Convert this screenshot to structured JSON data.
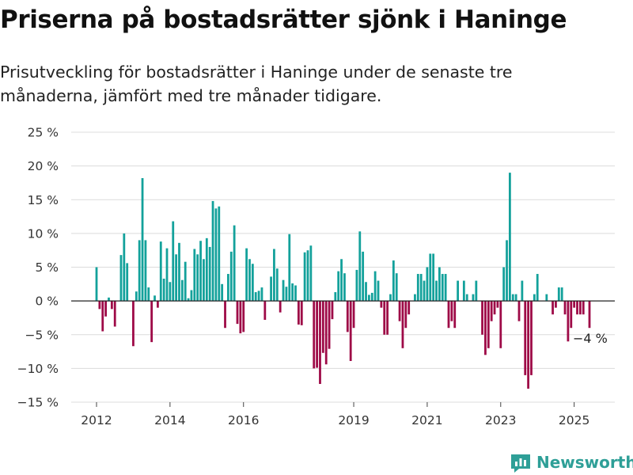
{
  "header": {
    "title": "Priserna på bostadsrätter sjönk i Haninge",
    "subtitle": "Prisutveckling för bostadsrätter i Haninge under de senaste tre månaderna, jämfört med tre månader tidigare."
  },
  "brand": {
    "name": "Newsworthy",
    "color": "#2e9f97"
  },
  "colors": {
    "positive": "#13a19b",
    "negative": "#9e0a47"
  },
  "chart_data": {
    "type": "bar",
    "title": "Priserna på bostadsrätter sjönk i Haninge",
    "subtitle": "Prisutveckling för bostadsrätter i Haninge under de senaste tre månaderna, jämfört med tre månader tidigare.",
    "xlabel": "",
    "ylabel": "",
    "ylim": [
      -15,
      25
    ],
    "y_ticks": [
      25,
      20,
      15,
      10,
      5,
      0,
      -5,
      -10,
      -15
    ],
    "y_tick_labels": [
      "25 %",
      "20 %",
      "15 %",
      "10 %",
      "5 %",
      "0 %",
      "−5 %",
      "−10 %",
      "−15 %"
    ],
    "x_ticks": [
      "2012",
      "2014",
      "2016",
      "2019",
      "2021",
      "2023",
      "2025"
    ],
    "x_range": [
      "2012-01",
      "2025-06"
    ],
    "grid": "horizontal",
    "annotations": [
      {
        "x": "2025-06",
        "text": "−4 %"
      }
    ],
    "series": [
      {
        "values": [
          {
            "x": "2012-01",
            "y": 5
          },
          {
            "x": "2012-02",
            "y": -1.2
          },
          {
            "x": "2012-03",
            "y": -4.5
          },
          {
            "x": "2012-04",
            "y": -2.3
          },
          {
            "x": "2012-05",
            "y": 0.5
          },
          {
            "x": "2012-06",
            "y": -1.2
          },
          {
            "x": "2012-07",
            "y": -3.8
          },
          {
            "x": "2012-09",
            "y": 6.8
          },
          {
            "x": "2012-10",
            "y": 10
          },
          {
            "x": "2012-11",
            "y": 5.6
          },
          {
            "x": "2013-01",
            "y": -6.7
          },
          {
            "x": "2013-02",
            "y": 1.4
          },
          {
            "x": "2013-03",
            "y": 9
          },
          {
            "x": "2013-04",
            "y": 18.2
          },
          {
            "x": "2013-05",
            "y": 9
          },
          {
            "x": "2013-06",
            "y": 2
          },
          {
            "x": "2013-07",
            "y": -6.1
          },
          {
            "x": "2013-08",
            "y": 0.8
          },
          {
            "x": "2013-09",
            "y": -1
          },
          {
            "x": "2013-10",
            "y": 8.8
          },
          {
            "x": "2013-11",
            "y": 3.3
          },
          {
            "x": "2013-12",
            "y": 7.8
          },
          {
            "x": "2014-01",
            "y": 2.8
          },
          {
            "x": "2014-02",
            "y": 11.8
          },
          {
            "x": "2014-03",
            "y": 6.9
          },
          {
            "x": "2014-04",
            "y": 8.6
          },
          {
            "x": "2014-05",
            "y": 3.1
          },
          {
            "x": "2014-06",
            "y": 5.8
          },
          {
            "x": "2014-07",
            "y": 0.4
          },
          {
            "x": "2014-08",
            "y": 1.6
          },
          {
            "x": "2014-09",
            "y": 7.7
          },
          {
            "x": "2014-10",
            "y": 6.9
          },
          {
            "x": "2014-11",
            "y": 8.9
          },
          {
            "x": "2014-12",
            "y": 6.2
          },
          {
            "x": "2015-01",
            "y": 9.3
          },
          {
            "x": "2015-02",
            "y": 8
          },
          {
            "x": "2015-03",
            "y": 14.8
          },
          {
            "x": "2015-04",
            "y": 13.7
          },
          {
            "x": "2015-05",
            "y": 14
          },
          {
            "x": "2015-06",
            "y": 2.5
          },
          {
            "x": "2015-07",
            "y": -4
          },
          {
            "x": "2015-08",
            "y": 4
          },
          {
            "x": "2015-09",
            "y": 7.3
          },
          {
            "x": "2015-10",
            "y": 11.2
          },
          {
            "x": "2015-11",
            "y": -3.4
          },
          {
            "x": "2015-12",
            "y": -4.8
          },
          {
            "x": "2016-01",
            "y": -4.6
          },
          {
            "x": "2016-02",
            "y": 7.8
          },
          {
            "x": "2016-03",
            "y": 6.2
          },
          {
            "x": "2016-04",
            "y": 5.5
          },
          {
            "x": "2016-05",
            "y": 1.3
          },
          {
            "x": "2016-06",
            "y": 1.5
          },
          {
            "x": "2016-07",
            "y": 2
          },
          {
            "x": "2016-08",
            "y": -2.8
          },
          {
            "x": "2016-10",
            "y": 3.6
          },
          {
            "x": "2016-11",
            "y": 7.7
          },
          {
            "x": "2016-12",
            "y": 4.8
          },
          {
            "x": "2017-01",
            "y": -1.7
          },
          {
            "x": "2017-02",
            "y": 3.1
          },
          {
            "x": "2017-03",
            "y": 2.1
          },
          {
            "x": "2017-04",
            "y": 9.9
          },
          {
            "x": "2017-05",
            "y": 2.6
          },
          {
            "x": "2017-06",
            "y": 2.3
          },
          {
            "x": "2017-07",
            "y": -3.5
          },
          {
            "x": "2017-08",
            "y": -3.6
          },
          {
            "x": "2017-09",
            "y": 7.2
          },
          {
            "x": "2017-10",
            "y": 7.5
          },
          {
            "x": "2017-11",
            "y": 8.2
          },
          {
            "x": "2017-12",
            "y": -10
          },
          {
            "x": "2018-01",
            "y": -9.9
          },
          {
            "x": "2018-02",
            "y": -12.3
          },
          {
            "x": "2018-03",
            "y": -7.7
          },
          {
            "x": "2018-04",
            "y": -9.4
          },
          {
            "x": "2018-05",
            "y": -7.1
          },
          {
            "x": "2018-06",
            "y": -2.7
          },
          {
            "x": "2018-07",
            "y": 1.3
          },
          {
            "x": "2018-08",
            "y": 4.4
          },
          {
            "x": "2018-09",
            "y": 6.2
          },
          {
            "x": "2018-10",
            "y": 4.1
          },
          {
            "x": "2018-11",
            "y": -4.6
          },
          {
            "x": "2018-12",
            "y": -8.9
          },
          {
            "x": "2019-01",
            "y": -4
          },
          {
            "x": "2019-02",
            "y": 4.6
          },
          {
            "x": "2019-03",
            "y": 10.3
          },
          {
            "x": "2019-04",
            "y": 7.3
          },
          {
            "x": "2019-05",
            "y": 2.8
          },
          {
            "x": "2019-06",
            "y": 0.9
          },
          {
            "x": "2019-07",
            "y": 1.2
          },
          {
            "x": "2019-08",
            "y": 4.4
          },
          {
            "x": "2019-09",
            "y": 3
          },
          {
            "x": "2019-10",
            "y": -1
          },
          {
            "x": "2019-11",
            "y": -5
          },
          {
            "x": "2019-12",
            "y": -5
          },
          {
            "x": "2020-01",
            "y": 1
          },
          {
            "x": "2020-02",
            "y": 6
          },
          {
            "x": "2020-03",
            "y": 4.1
          },
          {
            "x": "2020-04",
            "y": -3
          },
          {
            "x": "2020-05",
            "y": -7
          },
          {
            "x": "2020-06",
            "y": -4
          },
          {
            "x": "2020-07",
            "y": -2
          },
          {
            "x": "2020-09",
            "y": 1
          },
          {
            "x": "2020-10",
            "y": 4
          },
          {
            "x": "2020-11",
            "y": 4
          },
          {
            "x": "2020-12",
            "y": 3
          },
          {
            "x": "2021-01",
            "y": 5
          },
          {
            "x": "2021-02",
            "y": 7
          },
          {
            "x": "2021-03",
            "y": 7
          },
          {
            "x": "2021-04",
            "y": 3
          },
          {
            "x": "2021-05",
            "y": 5
          },
          {
            "x": "2021-06",
            "y": 4
          },
          {
            "x": "2021-07",
            "y": 4
          },
          {
            "x": "2021-08",
            "y": -4
          },
          {
            "x": "2021-09",
            "y": -3
          },
          {
            "x": "2021-10",
            "y": -4
          },
          {
            "x": "2021-11",
            "y": 3
          },
          {
            "x": "2022-01",
            "y": 3
          },
          {
            "x": "2022-02",
            "y": 1
          },
          {
            "x": "2022-04",
            "y": 1
          },
          {
            "x": "2022-05",
            "y": 3
          },
          {
            "x": "2022-07",
            "y": -5
          },
          {
            "x": "2022-08",
            "y": -8
          },
          {
            "x": "2022-09",
            "y": -7
          },
          {
            "x": "2022-10",
            "y": -3
          },
          {
            "x": "2022-11",
            "y": -2
          },
          {
            "x": "2022-12",
            "y": -1
          },
          {
            "x": "2023-01",
            "y": -7
          },
          {
            "x": "2023-02",
            "y": 5
          },
          {
            "x": "2023-03",
            "y": 9
          },
          {
            "x": "2023-04",
            "y": 19
          },
          {
            "x": "2023-05",
            "y": 1
          },
          {
            "x": "2023-06",
            "y": 1
          },
          {
            "x": "2023-07",
            "y": -3
          },
          {
            "x": "2023-08",
            "y": 3
          },
          {
            "x": "2023-09",
            "y": -11
          },
          {
            "x": "2023-10",
            "y": -13
          },
          {
            "x": "2023-11",
            "y": -11
          },
          {
            "x": "2023-12",
            "y": 1
          },
          {
            "x": "2024-01",
            "y": 4
          },
          {
            "x": "2024-04",
            "y": 1
          },
          {
            "x": "2024-06",
            "y": -2
          },
          {
            "x": "2024-07",
            "y": -1
          },
          {
            "x": "2024-08",
            "y": 2
          },
          {
            "x": "2024-09",
            "y": 2
          },
          {
            "x": "2024-10",
            "y": -2
          },
          {
            "x": "2024-11",
            "y": -6
          },
          {
            "x": "2024-12",
            "y": -4
          },
          {
            "x": "2025-01",
            "y": -1
          },
          {
            "x": "2025-02",
            "y": -2
          },
          {
            "x": "2025-03",
            "y": -2
          },
          {
            "x": "2025-04",
            "y": -2
          },
          {
            "x": "2025-06",
            "y": -4
          }
        ]
      }
    ]
  }
}
